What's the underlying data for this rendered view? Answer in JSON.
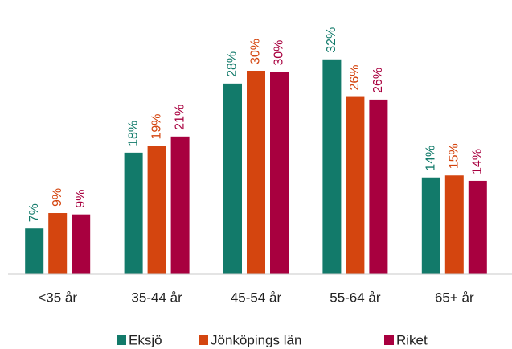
{
  "chart_data": {
    "type": "bar",
    "categories": [
      "<35 år",
      "35-44 år",
      "45-54 år",
      "55-64 år",
      "65+ år"
    ],
    "series": [
      {
        "name": "Eksjö",
        "color": "#127a6a",
        "values": [
          6.8,
          18.1,
          28.4,
          32.0,
          14.4
        ],
        "value_labels": [
          "7%",
          "18%",
          "28%",
          "32%",
          "14%"
        ]
      },
      {
        "name": "Jönköpings län",
        "color": "#d4450f",
        "values": [
          9.1,
          19.1,
          30.3,
          26.4,
          14.7
        ],
        "value_labels": [
          "9%",
          "19%",
          "30%",
          "26%",
          "15%"
        ]
      },
      {
        "name": "Riket",
        "color": "#a8003f",
        "values": [
          8.9,
          20.5,
          30.1,
          26.0,
          13.9
        ],
        "value_labels": [
          "9%",
          "21%",
          "30%",
          "26%",
          "14%"
        ]
      }
    ],
    "ylim": [
      0,
      40
    ]
  }
}
